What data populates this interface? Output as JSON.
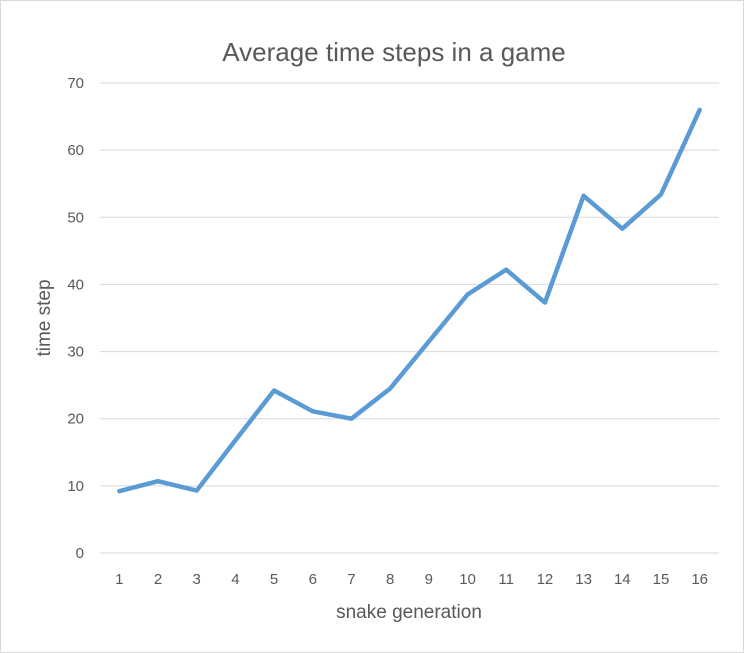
{
  "chart_data": {
    "type": "line",
    "title": "Average time steps in a game",
    "xlabel": "snake generation",
    "ylabel": "time step",
    "categories": [
      "1",
      "2",
      "3",
      "4",
      "5",
      "6",
      "7",
      "8",
      "9",
      "10",
      "11",
      "12",
      "13",
      "14",
      "15",
      "16"
    ],
    "series": [
      {
        "values": [
          9.2,
          10.7,
          9.3,
          16.8,
          24.2,
          21.1,
          20.0,
          24.5,
          31.5,
          38.5,
          42.2,
          37.3,
          53.2,
          48.3,
          53.4,
          66.0
        ],
        "color": "#5b9bd5"
      }
    ],
    "ylim": [
      0,
      70
    ],
    "yticks": [
      0,
      10,
      20,
      30,
      40,
      50,
      60,
      70
    ],
    "grid": true,
    "legend": "none"
  }
}
